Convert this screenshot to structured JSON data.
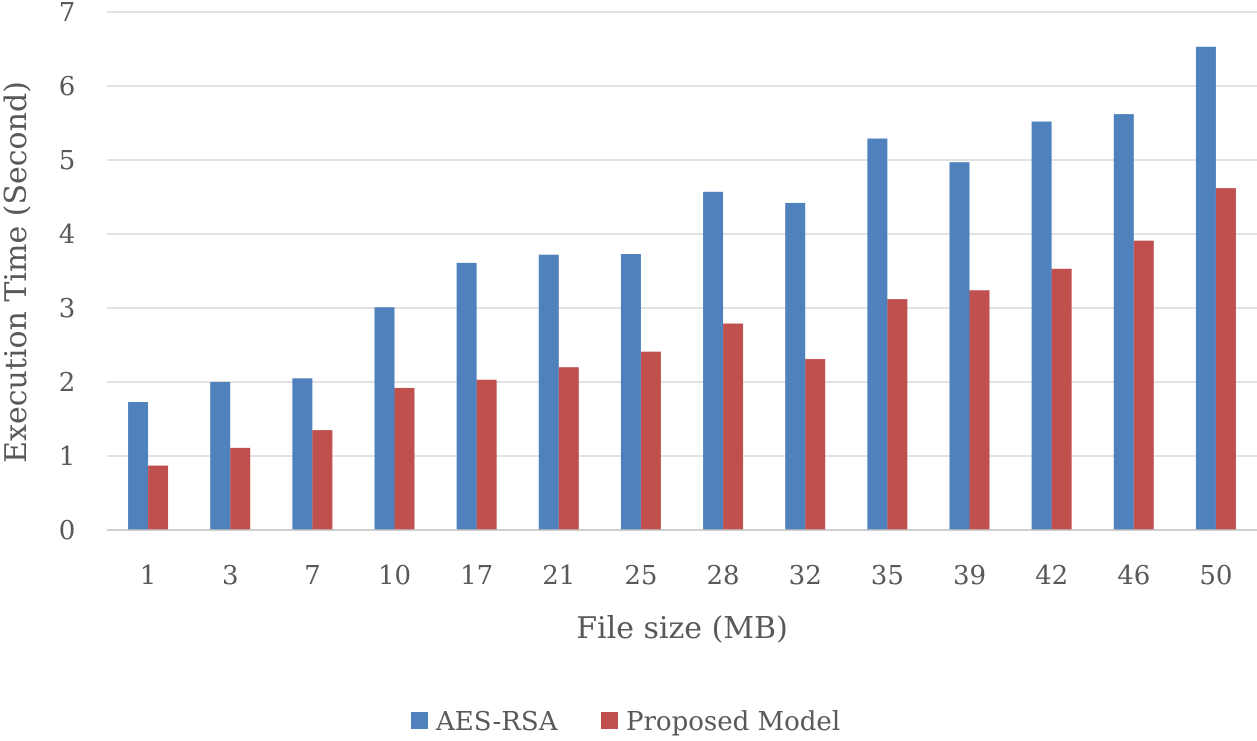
{
  "chart_data": {
    "type": "bar",
    "title": "",
    "xlabel": "File size (MB)",
    "ylabel": "Execution Time (Second)",
    "categories": [
      "1",
      "3",
      "7",
      "10",
      "17",
      "21",
      "25",
      "28",
      "32",
      "35",
      "39",
      "42",
      "46",
      "50"
    ],
    "series": [
      {
        "name": "AES-RSA",
        "color": "#4f81bd",
        "values": [
          1.73,
          2.0,
          2.05,
          3.01,
          3.61,
          3.72,
          3.73,
          4.57,
          4.42,
          5.29,
          4.97,
          5.52,
          5.62,
          6.53
        ]
      },
      {
        "name": "Proposed Model",
        "color": "#c0504d",
        "values": [
          0.87,
          1.11,
          1.35,
          1.92,
          2.03,
          2.2,
          2.41,
          2.79,
          2.31,
          3.12,
          3.24,
          3.53,
          3.91,
          4.62
        ]
      }
    ],
    "ylim": [
      0,
      7
    ],
    "yticks": [
      "0",
      "1",
      "2",
      "3",
      "4",
      "5",
      "6",
      "7"
    ],
    "grid": true,
    "legend_position": "bottom"
  }
}
